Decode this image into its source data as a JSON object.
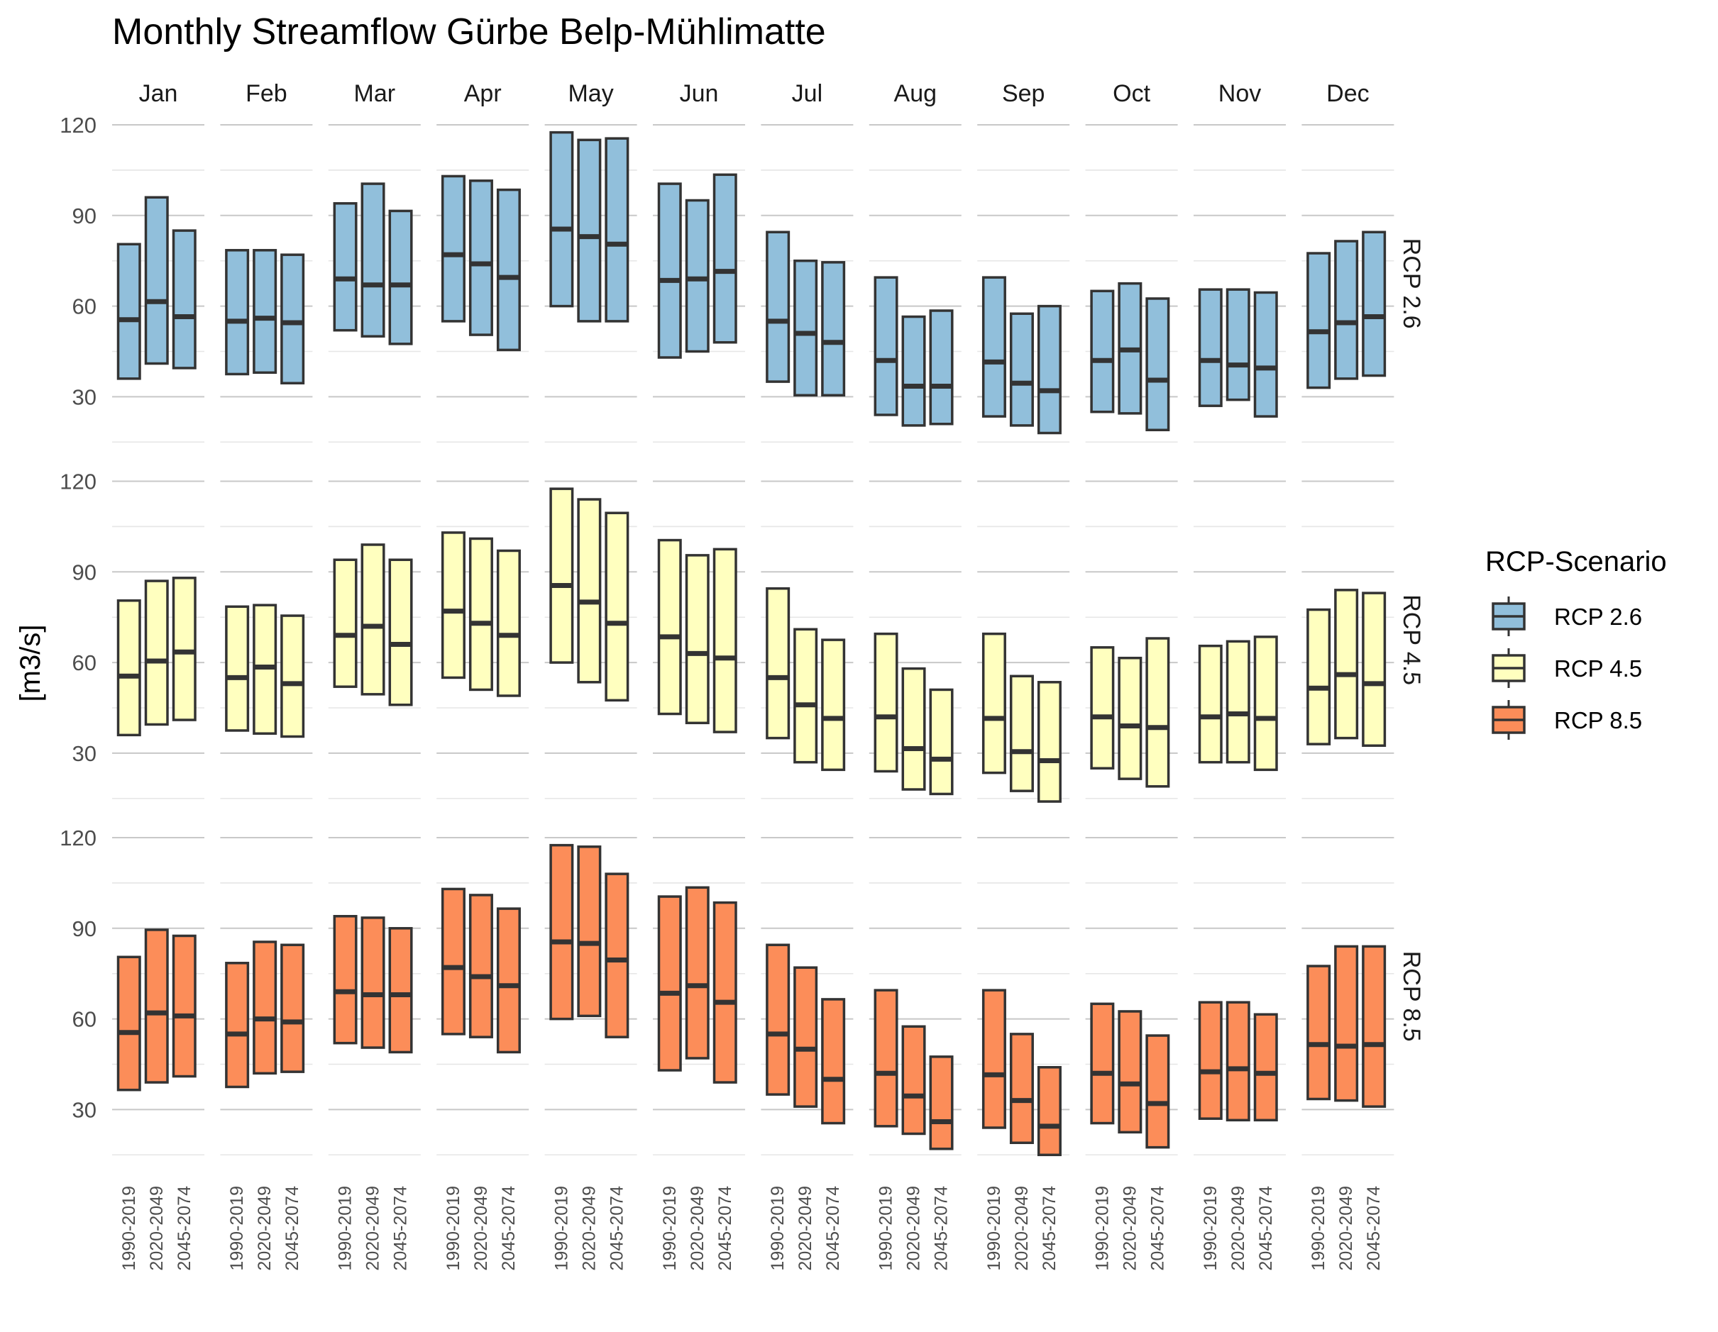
{
  "chart_data": {
    "type": "bar",
    "title": "Monthly Streamflow Gürbe Belp-Mühlimatte",
    "ylabel": "[m3/s]",
    "xlabel": "",
    "ylim": [
      7,
      125
    ],
    "yticks": [
      30,
      60,
      90,
      120
    ],
    "grid": true,
    "legend": {
      "title": "RCP-Scenario",
      "position": "right",
      "entries": [
        {
          "name": "RCP 2.6",
          "color": "#91bfdb"
        },
        {
          "name": "RCP 4.5",
          "color": "#ffffbf"
        },
        {
          "name": "RCP 8.5",
          "color": "#fc8d59"
        }
      ]
    },
    "months": [
      "Jan",
      "Feb",
      "Mar",
      "Apr",
      "May",
      "Jun",
      "Jul",
      "Aug",
      "Sep",
      "Oct",
      "Nov",
      "Dec"
    ],
    "periods": [
      "1990-2019",
      "2020-2049",
      "2045-2074"
    ],
    "panels": [
      {
        "name": "RCP 2.6",
        "color": "#91bfdb",
        "months": [
          [
            [
              36,
              55.5,
              80.5
            ],
            [
              41,
              61.5,
              96
            ],
            [
              39.5,
              56.5,
              85
            ]
          ],
          [
            [
              37.5,
              55,
              78.5
            ],
            [
              38,
              56,
              78.5
            ],
            [
              34.5,
              54.5,
              77
            ]
          ],
          [
            [
              52,
              69,
              94
            ],
            [
              50,
              67,
              100.5
            ],
            [
              47.5,
              67,
              91.5
            ]
          ],
          [
            [
              55,
              77,
              103
            ],
            [
              50.5,
              74,
              101.5
            ],
            [
              45.5,
              69.5,
              98.5
            ]
          ],
          [
            [
              60,
              85.5,
              117.5
            ],
            [
              55,
              83,
              115
            ],
            [
              55,
              80.5,
              115.5
            ]
          ],
          [
            [
              43,
              68.5,
              100.5
            ],
            [
              45,
              69,
              95
            ],
            [
              48,
              71.5,
              103.5
            ]
          ],
          [
            [
              35,
              55,
              84.5
            ],
            [
              30.5,
              51,
              75
            ],
            [
              30.5,
              48,
              74.5
            ]
          ],
          [
            [
              24,
              42,
              69.5
            ],
            [
              20.5,
              33.5,
              56.5
            ],
            [
              21,
              33.5,
              58.5
            ]
          ],
          [
            [
              23.5,
              41.5,
              69.5
            ],
            [
              20.5,
              34.5,
              57.5
            ],
            [
              18,
              32,
              60
            ]
          ],
          [
            [
              25,
              42,
              65
            ],
            [
              24.5,
              45.5,
              67.5
            ],
            [
              19,
              35.5,
              62.5
            ]
          ],
          [
            [
              27,
              42,
              65.5
            ],
            [
              29,
              40.5,
              65.5
            ],
            [
              23.5,
              39.5,
              64.5
            ]
          ],
          [
            [
              33,
              51.5,
              77.5
            ],
            [
              36,
              54.5,
              81.5
            ],
            [
              37,
              56.5,
              84.5
            ]
          ]
        ]
      },
      {
        "name": "RCP 4.5",
        "color": "#ffffbf",
        "months": [
          [
            [
              36,
              55.5,
              80.5
            ],
            [
              39.5,
              60.5,
              87
            ],
            [
              41,
              63.5,
              88
            ]
          ],
          [
            [
              37.5,
              55,
              78.5
            ],
            [
              36.5,
              58.5,
              79
            ],
            [
              35.5,
              53,
              75.5
            ]
          ],
          [
            [
              52,
              69,
              94
            ],
            [
              49.5,
              72,
              99
            ],
            [
              46,
              66,
              94
            ]
          ],
          [
            [
              55,
              77,
              103
            ],
            [
              51,
              73,
              101
            ],
            [
              49,
              69,
              97
            ]
          ],
          [
            [
              60,
              85.5,
              117.5
            ],
            [
              53.5,
              80,
              114
            ],
            [
              47.5,
              73,
              109.5
            ]
          ],
          [
            [
              43,
              68.5,
              100.5
            ],
            [
              40,
              63,
              95.5
            ],
            [
              37,
              61.5,
              97.5
            ]
          ],
          [
            [
              35,
              55,
              84.5
            ],
            [
              27,
              46,
              71
            ],
            [
              24.5,
              41.5,
              67.5
            ]
          ],
          [
            [
              24,
              42,
              69.5
            ],
            [
              18,
              31.5,
              58
            ],
            [
              16.5,
              28,
              51
            ]
          ],
          [
            [
              23.5,
              41.5,
              69.5
            ],
            [
              17.5,
              30.5,
              55.5
            ],
            [
              14,
              27.5,
              53.5
            ]
          ],
          [
            [
              25,
              42,
              65
            ],
            [
              21.5,
              39,
              61.5
            ],
            [
              19,
              38.5,
              68
            ]
          ],
          [
            [
              27,
              42,
              65.5
            ],
            [
              27,
              43,
              67
            ],
            [
              24.5,
              41.5,
              68.5
            ]
          ],
          [
            [
              33,
              51.5,
              77.5
            ],
            [
              35,
              56,
              84
            ],
            [
              32.5,
              53,
              83
            ]
          ]
        ]
      },
      {
        "name": "RCP 8.5",
        "color": "#fc8d59",
        "months": [
          [
            [
              36.5,
              55.5,
              80.5
            ],
            [
              39,
              62,
              89.5
            ],
            [
              41,
              61,
              87.5
            ]
          ],
          [
            [
              37.5,
              55,
              78.5
            ],
            [
              42,
              60,
              85.5
            ],
            [
              42.5,
              59,
              84.5
            ]
          ],
          [
            [
              52,
              69,
              94
            ],
            [
              50.5,
              68,
              93.5
            ],
            [
              49,
              68,
              90
            ]
          ],
          [
            [
              55,
              77,
              103
            ],
            [
              54,
              74,
              101
            ],
            [
              49,
              71,
              96.5
            ]
          ],
          [
            [
              60,
              85.5,
              117.5
            ],
            [
              61,
              85,
              117
            ],
            [
              54,
              79.5,
              108
            ]
          ],
          [
            [
              43,
              68.5,
              100.5
            ],
            [
              47,
              71,
              103.5
            ],
            [
              39,
              65.5,
              98.5
            ]
          ],
          [
            [
              35,
              55,
              84.5
            ],
            [
              31,
              50,
              77
            ],
            [
              25.5,
              40,
              66.5
            ]
          ],
          [
            [
              24.5,
              42,
              69.5
            ],
            [
              22,
              34.5,
              57.5
            ],
            [
              17,
              26,
              47.5
            ]
          ],
          [
            [
              24,
              41.5,
              69.5
            ],
            [
              19,
              33,
              55
            ],
            [
              15,
              24.5,
              44
            ]
          ],
          [
            [
              25.5,
              42,
              65
            ],
            [
              22.5,
              38.5,
              62.5
            ],
            [
              17.5,
              32,
              54.5
            ]
          ],
          [
            [
              27,
              42.5,
              65.5
            ],
            [
              26.5,
              43.5,
              65.5
            ],
            [
              26.5,
              42,
              61.5
            ]
          ],
          [
            [
              33.5,
              51.5,
              77.5
            ],
            [
              33,
              51,
              84
            ],
            [
              31,
              51.5,
              84
            ]
          ]
        ]
      }
    ]
  }
}
